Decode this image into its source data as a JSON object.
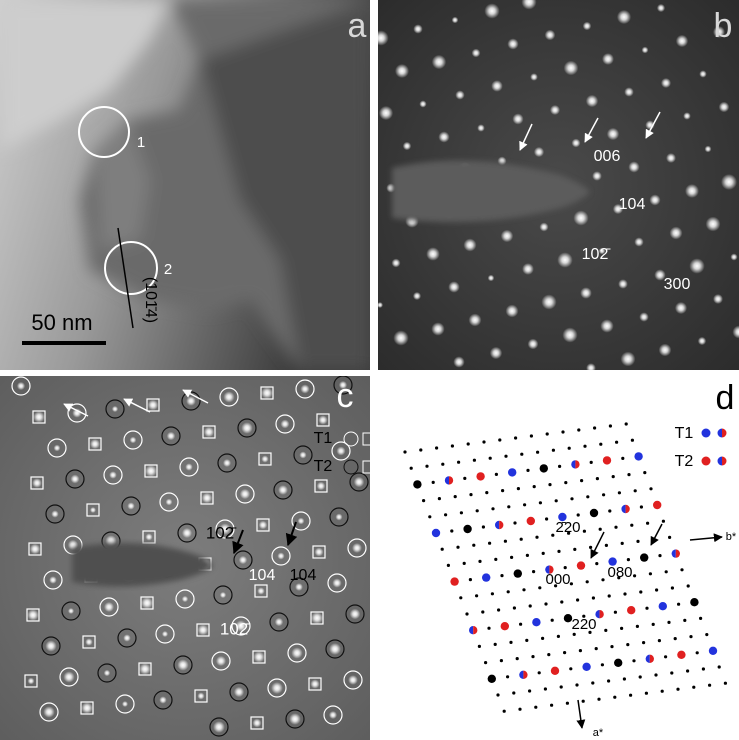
{
  "panels": [
    {
      "label": "a",
      "texts": [
        "1",
        "2",
        "(101̄4)",
        "50 nm"
      ]
    },
    {
      "label": "b",
      "texts": [
        "006",
        "104",
        "102̄",
        "300"
      ]
    },
    {
      "label": "c",
      "texts": [
        "T1",
        "T2",
        "102̄",
        "104",
        "104",
        "102̄"
      ]
    },
    {
      "label": "d",
      "texts": [
        "T1",
        "T2",
        "2̄20",
        "000",
        "080",
        "220",
        "b*",
        "a*"
      ]
    }
  ]
}
